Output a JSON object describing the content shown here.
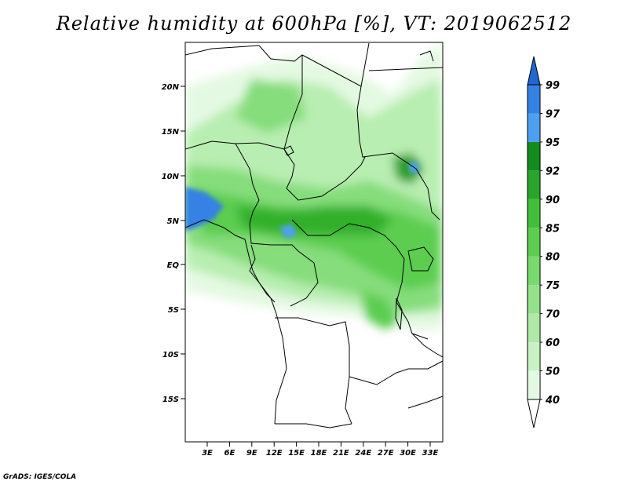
{
  "title": "Relative humidity at 600hPa [%], VT: 2019062512",
  "credit": "GrADS: IGES/COLA",
  "map": {
    "lat_ticks": [
      "20N",
      "15N",
      "10N",
      "5N",
      "EQ",
      "5S",
      "10S",
      "15S"
    ],
    "lon_ticks": [
      "3E",
      "6E",
      "9E",
      "12E",
      "15E",
      "18E",
      "21E",
      "24E",
      "27E",
      "30E",
      "33E"
    ],
    "colors": {
      "c40": "#f0fcf0",
      "c50": "#dcf7da",
      "c60": "#c3f0bf",
      "c70": "#a6e8a0",
      "c75": "#8ce081",
      "c80": "#6ed662",
      "c85": "#4fc845",
      "c90": "#33b02c",
      "c92": "#1a9420",
      "c95": "#5aa0f0",
      "c97": "#3a84e6",
      "c99": "#1f66d6"
    }
  },
  "colorbar": {
    "labels": [
      "40",
      "50",
      "60",
      "70",
      "75",
      "80",
      "85",
      "90",
      "92",
      "95",
      "97",
      "99"
    ],
    "colors": [
      "#ffffff",
      "#e4f9e2",
      "#c8f2c3",
      "#aeeaa6",
      "#94e28a",
      "#78d96d",
      "#5ccd50",
      "#42bf3a",
      "#2aa52c",
      "#138c1e",
      "#4f9ff0",
      "#3482e4",
      "#2166d2"
    ]
  }
}
